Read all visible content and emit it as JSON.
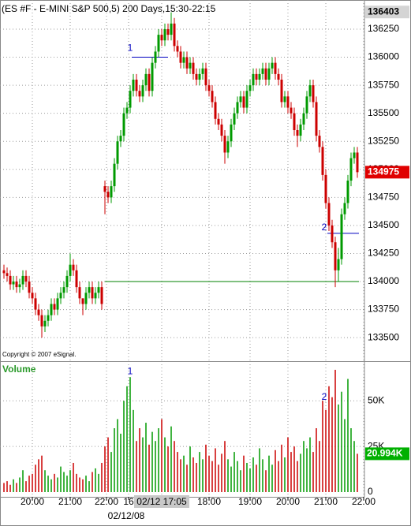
{
  "chart_data": {
    "type": "candlestick",
    "title": "(ES #F - E-MINI S&P 500,5) 200 Days,15:30-22:15",
    "copyright": "Copyright © 2007 eSignal.",
    "up_color": "#009a00",
    "down_color": "#cc0000",
    "open": [
      134100,
      134075,
      134050,
      133975,
      134000,
      133950,
      133975,
      134050,
      134000,
      133900,
      133850,
      133750,
      133700,
      133600,
      133650,
      133700,
      133800,
      133750,
      133850,
      133900,
      133950,
      134050,
      134150,
      134100,
      133950,
      133850,
      133800,
      133900,
      133950,
      133850,
      133900,
      133950,
      134850,
      134800,
      134750,
      134850,
      135050,
      135250,
      135300,
      135500,
      135550,
      135700,
      135800,
      135700,
      135650,
      135750,
      135850,
      135700,
      135950,
      136050,
      136200,
      136150,
      136250,
      136200,
      136300,
      136100,
      136050,
      135950,
      136000,
      135900,
      135950,
      135850,
      135800,
      135850,
      135900,
      135750,
      135700,
      135600,
      135450,
      135400,
      135300,
      135150,
      135250,
      135400,
      135500,
      135600,
      135650,
      135550,
      135700,
      135750,
      135850,
      135800,
      135850,
      135900,
      135800,
      135900,
      135950,
      135850,
      135800,
      135600,
      135650,
      135550,
      135500,
      135350,
      135300,
      135400,
      135500,
      135650,
      135750,
      135600,
      135300,
      135200,
      134950,
      134700,
      134500,
      134350,
      134100,
      134200,
      134600,
      134700,
      134900,
      135100,
      135150
    ],
    "high": [
      134150,
      134125,
      134100,
      134050,
      134050,
      134025,
      134100,
      134100,
      134050,
      133950,
      133900,
      133800,
      133750,
      133700,
      133750,
      133850,
      133850,
      133900,
      133950,
      134000,
      134100,
      134250,
      134200,
      134150,
      134000,
      133850,
      133950,
      134000,
      134000,
      133950,
      134000,
      134000,
      134900,
      134850,
      134900,
      135100,
      135300,
      135350,
      135550,
      135600,
      135750,
      135850,
      135850,
      135750,
      135800,
      135900,
      135900,
      136000,
      136100,
      136250,
      136250,
      136300,
      136300,
      136400,
      136350,
      136150,
      136100,
      136050,
      136050,
      136000,
      136000,
      135900,
      135900,
      135950,
      135950,
      135800,
      135750,
      135650,
      135500,
      135450,
      135350,
      135300,
      135450,
      135550,
      135650,
      135700,
      135700,
      135750,
      135800,
      135900,
      135900,
      135900,
      135950,
      135950,
      135950,
      136000,
      136000,
      135900,
      135850,
      135700,
      135700,
      135600,
      135550,
      135400,
      135450,
      135550,
      135700,
      135800,
      135800,
      135650,
      135350,
      135250,
      135000,
      134750,
      134550,
      134400,
      134300,
      134650,
      134750,
      134950,
      135150,
      135200,
      135200
    ],
    "low": [
      134025,
      134000,
      133925,
      133925,
      133900,
      133900,
      133925,
      133950,
      133850,
      133800,
      133700,
      133650,
      133500,
      133550,
      133600,
      133650,
      133700,
      133700,
      133800,
      133850,
      133900,
      134000,
      134050,
      133900,
      133800,
      133700,
      133750,
      133850,
      133800,
      133800,
      133850,
      133750,
      134600,
      134700,
      134700,
      134800,
      135000,
      135200,
      135250,
      135450,
      135500,
      135650,
      135650,
      135600,
      135600,
      135700,
      135650,
      135650,
      135900,
      136000,
      136100,
      136100,
      136150,
      136150,
      136050,
      136000,
      135900,
      135900,
      135850,
      135850,
      135800,
      135750,
      135750,
      135800,
      135700,
      135650,
      135550,
      135400,
      135350,
      135250,
      135050,
      135100,
      135200,
      135350,
      135450,
      135550,
      135500,
      135500,
      135650,
      135700,
      135750,
      135750,
      135800,
      135750,
      135750,
      135850,
      135800,
      135750,
      135550,
      135550,
      135500,
      135450,
      135300,
      135200,
      135250,
      135350,
      135450,
      135600,
      135550,
      135250,
      135150,
      134900,
      134650,
      134450,
      134300,
      133950,
      134000,
      134150,
      134550,
      134650,
      134850,
      135050,
      134925
    ],
    "close": [
      134075,
      134050,
      133975,
      134000,
      133950,
      133975,
      134050,
      134000,
      133900,
      133850,
      133750,
      133700,
      133600,
      133650,
      133700,
      133800,
      133750,
      133850,
      133900,
      133950,
      134050,
      134150,
      134100,
      133950,
      133850,
      133800,
      133900,
      133950,
      133850,
      133900,
      133950,
      133800,
      134800,
      134750,
      134850,
      135050,
      135250,
      135300,
      135500,
      135550,
      135700,
      135800,
      135700,
      135650,
      135750,
      135850,
      135700,
      135950,
      136050,
      136200,
      136150,
      136250,
      136200,
      136300,
      136100,
      136050,
      135950,
      136000,
      135900,
      135950,
      135850,
      135800,
      135850,
      135900,
      135750,
      135700,
      135600,
      135450,
      135400,
      135300,
      135150,
      135250,
      135400,
      135500,
      135600,
      135650,
      135550,
      135700,
      135750,
      135850,
      135800,
      135850,
      135900,
      135800,
      135900,
      135950,
      135850,
      135800,
      135600,
      135650,
      135550,
      135500,
      135350,
      135300,
      135400,
      135500,
      135650,
      135750,
      135600,
      135300,
      135200,
      134950,
      134700,
      134500,
      134350,
      134100,
      134200,
      134600,
      134700,
      134900,
      135100,
      135150,
      134975
    ],
    "ylim": [
      133290,
      136510
    ],
    "yticks": [
      133500,
      133750,
      134000,
      134250,
      134500,
      134750,
      135000,
      135250,
      135500,
      135750,
      136000,
      136250
    ],
    "grid": true,
    "xlim": [
      -1.25,
      114.75
    ],
    "xticks": [
      {
        "value": 9,
        "label": "20:00"
      },
      {
        "value": 21,
        "label": "21:00"
      },
      {
        "value": 32.5,
        "label": "22:00"
      },
      {
        "value": 39.5,
        "label": "16"
      },
      {
        "value": 50,
        "label": "02/12 17:05"
      },
      {
        "value": 65,
        "label": "18:00"
      },
      {
        "value": 78,
        "label": "19:00"
      },
      {
        "value": 90,
        "label": "20:00"
      },
      {
        "value": 102,
        "label": "21:00"
      },
      {
        "value": 114,
        "label": "22:00"
      }
    ],
    "highlight_tick": 4,
    "x_date": "02/12/08",
    "price_markers": [
      {
        "value": 136403,
        "label": "136403",
        "color": "#d4d4d4"
      },
      {
        "value": 134975,
        "label": "134975",
        "color": "#e00000"
      }
    ],
    "lines": [
      {
        "value": 134000,
        "x": [
          32,
          112.5
        ],
        "color": "#008000"
      },
      {
        "value": 136000,
        "x": [
          40.5,
          52
        ],
        "color": "#0000c0"
      },
      {
        "value": 134430,
        "x": [
          102.5,
          112.5
        ],
        "color": "#0000c0"
      }
    ],
    "annotations": [
      {
        "text": "1",
        "x": 40,
        "y": 136080
      },
      {
        "text": "2",
        "x": 101.5,
        "y": 134480
      }
    ],
    "volume": {
      "title": "Volume",
      "values": [
        5000,
        6000,
        4000,
        7000,
        5000,
        8000,
        12000,
        6000,
        9000,
        10000,
        15000,
        18000,
        20000,
        12000,
        9000,
        7000,
        10000,
        8000,
        14000,
        11000,
        9000,
        12000,
        16000,
        10000,
        8000,
        7000,
        9000,
        6000,
        11000,
        13000,
        10000,
        16000,
        25000,
        30000,
        22000,
        35000,
        40000,
        32000,
        50000,
        58000,
        63000,
        45000,
        28000,
        35000,
        30000,
        38000,
        26000,
        33000,
        28000,
        35000,
        40000,
        30000,
        25000,
        36000,
        28000,
        22000,
        18000,
        20000,
        15000,
        25000,
        19000,
        16000,
        22000,
        18000,
        26000,
        20000,
        17000,
        24000,
        15000,
        21000,
        28000,
        18000,
        14000,
        22000,
        17000,
        12000,
        20000,
        16000,
        13000,
        19000,
        15000,
        24000,
        18000,
        12000,
        20000,
        15000,
        23000,
        17000,
        26000,
        19000,
        30000,
        22000,
        25000,
        17000,
        21000,
        28000,
        24000,
        30000,
        22000,
        35000,
        28000,
        50000,
        45000,
        58000,
        52000,
        67000,
        48000,
        55000,
        40000,
        62000,
        35000,
        28000,
        20994
      ],
      "ylim": [
        0,
        70000
      ],
      "yticks": [
        0,
        {
          "value": 25000,
          "label": "25K"
        },
        {
          "value": 50000,
          "label": "50K"
        }
      ],
      "marker": {
        "value": 20994,
        "label": "20.994K",
        "color": "#00b000"
      },
      "annotations": [
        {
          "text": "1",
          "x": 40,
          "y": 66000
        },
        {
          "text": "2",
          "x": 101.5,
          "y": 52000
        }
      ]
    }
  }
}
